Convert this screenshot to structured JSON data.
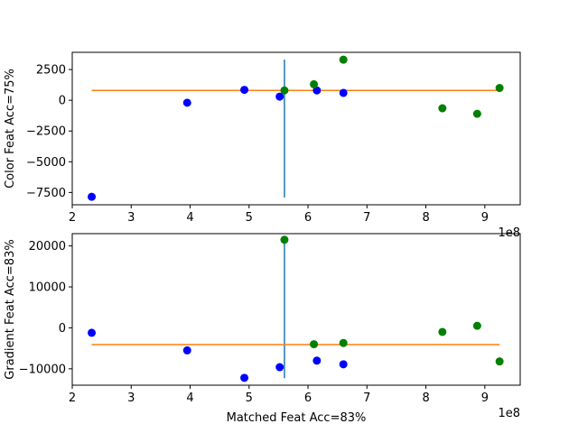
{
  "chart_data": [
    {
      "type": "scatter",
      "ylabel": "Color Feat Acc=75%",
      "xlabel": "",
      "x_offset_label": "1e8",
      "xlim": [
        2.0,
        9.6
      ],
      "ylim": [
        -8500,
        3900
      ],
      "xticks": [
        2,
        3,
        4,
        5,
        6,
        7,
        8,
        9
      ],
      "yticks": [
        2500,
        0,
        -2500,
        -5000,
        -7500
      ],
      "ytick_labels": [
        "2500",
        "0",
        "−2500",
        "−5000",
        "−7500"
      ],
      "series": [
        {
          "color": "#0000ff",
          "points": [
            [
              2.33,
              -7850
            ],
            [
              3.95,
              -200
            ],
            [
              4.92,
              850
            ],
            [
              5.52,
              300
            ],
            [
              6.15,
              800
            ],
            [
              6.6,
              600
            ]
          ]
        },
        {
          "color": "#008000",
          "points": [
            [
              5.6,
              800
            ],
            [
              6.1,
              1300
            ],
            [
              6.6,
              3300
            ],
            [
              8.28,
              -650
            ],
            [
              8.87,
              -1100
            ],
            [
              9.25,
              1000
            ]
          ]
        }
      ],
      "hline": {
        "y": 800,
        "x_from": 2.33,
        "x_to": 9.25,
        "color": "#ff7f0e"
      },
      "vline": {
        "x": 5.6,
        "y_from": -7900,
        "y_to": 3300,
        "color": "#1f77b4"
      }
    },
    {
      "type": "scatter",
      "ylabel": "Gradient Feat Acc=83%",
      "xlabel": "Matched Feat Acc=83%",
      "x_offset_label": "1e8",
      "xlim": [
        2.0,
        9.6
      ],
      "ylim": [
        -14000,
        23000
      ],
      "xticks": [
        2,
        3,
        4,
        5,
        6,
        7,
        8,
        9
      ],
      "yticks": [
        20000,
        10000,
        0,
        -10000
      ],
      "ytick_labels": [
        "20000",
        "10000",
        "0",
        "−10000"
      ],
      "series": [
        {
          "color": "#0000ff",
          "points": [
            [
              2.33,
              -1200
            ],
            [
              3.95,
              -5500
            ],
            [
              4.92,
              -12200
            ],
            [
              5.52,
              -9600
            ],
            [
              6.15,
              -8000
            ],
            [
              6.6,
              -8900
            ]
          ]
        },
        {
          "color": "#008000",
          "points": [
            [
              5.6,
              21500
            ],
            [
              6.1,
              -4000
            ],
            [
              6.6,
              -3700
            ],
            [
              8.28,
              -1000
            ],
            [
              8.87,
              500
            ],
            [
              9.25,
              -8200
            ]
          ]
        }
      ],
      "hline": {
        "y": -4100,
        "x_from": 2.33,
        "x_to": 9.25,
        "color": "#ff7f0e"
      },
      "vline": {
        "x": 5.6,
        "y_from": -12300,
        "y_to": 21500,
        "color": "#1f77b4"
      }
    }
  ]
}
